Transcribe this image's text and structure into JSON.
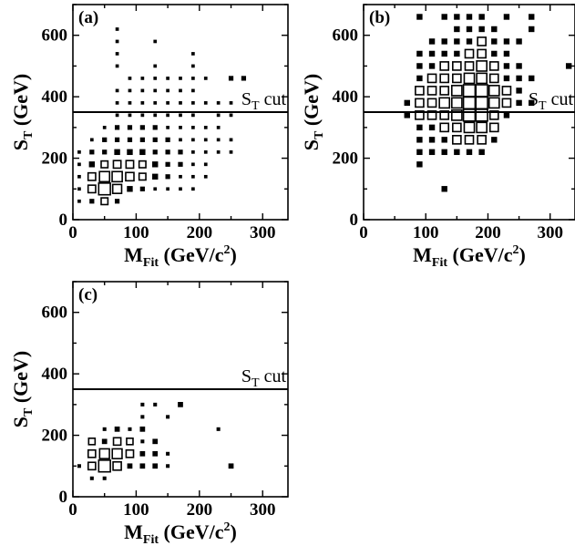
{
  "chart_data": [
    {
      "type": "box-histogram-2d",
      "panel_label": "(a)",
      "xlabel_main": "M",
      "xlabel_sub": "Fit",
      "xlabel_unit": "(GeV/c",
      "xlabel_sup": "2",
      "xlabel_close": ")",
      "ylabel_main": "S",
      "ylabel_sub": "T",
      "ylabel_unit": "(GeV)",
      "xlim": [
        0,
        340
      ],
      "ylim": [
        0,
        700
      ],
      "xticks": [
        "0",
        "100",
        "200",
        "300"
      ],
      "yticks": [
        "0",
        "200",
        "400",
        "600"
      ],
      "cut_value": 350,
      "cut_label_main": "S",
      "cut_label_sub": "T",
      "cut_label_rest": " cut",
      "bin_width": 20,
      "bin_height": 40,
      "bins": [
        [
          10,
          60,
          1
        ],
        [
          30,
          60,
          2
        ],
        [
          50,
          60,
          4
        ],
        [
          70,
          60,
          2
        ],
        [
          10,
          100,
          1
        ],
        [
          30,
          100,
          5
        ],
        [
          50,
          100,
          12
        ],
        [
          70,
          100,
          7
        ],
        [
          90,
          100,
          3
        ],
        [
          110,
          100,
          2
        ],
        [
          130,
          100,
          1
        ],
        [
          150,
          100,
          1
        ],
        [
          170,
          100,
          1
        ],
        [
          190,
          100,
          1
        ],
        [
          10,
          140,
          1
        ],
        [
          30,
          140,
          5
        ],
        [
          50,
          140,
          9
        ],
        [
          70,
          140,
          9
        ],
        [
          90,
          140,
          6
        ],
        [
          110,
          140,
          4
        ],
        [
          130,
          140,
          3
        ],
        [
          150,
          140,
          2
        ],
        [
          170,
          140,
          1
        ],
        [
          190,
          140,
          1
        ],
        [
          210,
          140,
          1
        ],
        [
          10,
          180,
          1
        ],
        [
          30,
          180,
          3
        ],
        [
          50,
          180,
          4
        ],
        [
          70,
          180,
          5
        ],
        [
          90,
          180,
          5
        ],
        [
          110,
          180,
          4
        ],
        [
          130,
          180,
          3
        ],
        [
          150,
          180,
          2
        ],
        [
          170,
          180,
          2
        ],
        [
          190,
          180,
          1
        ],
        [
          210,
          180,
          1
        ],
        [
          10,
          220,
          1
        ],
        [
          30,
          220,
          2
        ],
        [
          50,
          220,
          2
        ],
        [
          70,
          220,
          3
        ],
        [
          90,
          220,
          3
        ],
        [
          110,
          220,
          3
        ],
        [
          130,
          220,
          2
        ],
        [
          150,
          220,
          2
        ],
        [
          170,
          220,
          2
        ],
        [
          190,
          220,
          1
        ],
        [
          210,
          220,
          1
        ],
        [
          230,
          220,
          1
        ],
        [
          250,
          220,
          1
        ],
        [
          30,
          260,
          1
        ],
        [
          50,
          260,
          2
        ],
        [
          70,
          260,
          2
        ],
        [
          90,
          260,
          2
        ],
        [
          110,
          260,
          2
        ],
        [
          130,
          260,
          2
        ],
        [
          150,
          260,
          2
        ],
        [
          170,
          260,
          1
        ],
        [
          190,
          260,
          1
        ],
        [
          210,
          260,
          1
        ],
        [
          230,
          260,
          1
        ],
        [
          250,
          260,
          1
        ],
        [
          50,
          300,
          1
        ],
        [
          70,
          300,
          2
        ],
        [
          90,
          300,
          2
        ],
        [
          110,
          300,
          2
        ],
        [
          130,
          300,
          2
        ],
        [
          150,
          300,
          1
        ],
        [
          170,
          300,
          1
        ],
        [
          190,
          300,
          1
        ],
        [
          210,
          300,
          1
        ],
        [
          230,
          300,
          1
        ],
        [
          70,
          340,
          1
        ],
        [
          90,
          340,
          1
        ],
        [
          110,
          340,
          1
        ],
        [
          130,
          340,
          1
        ],
        [
          150,
          340,
          1
        ],
        [
          170,
          340,
          1
        ],
        [
          190,
          340,
          1
        ],
        [
          230,
          340,
          1
        ],
        [
          250,
          340,
          1
        ],
        [
          70,
          380,
          1
        ],
        [
          90,
          380,
          1
        ],
        [
          110,
          380,
          1
        ],
        [
          130,
          380,
          1
        ],
        [
          150,
          380,
          1
        ],
        [
          170,
          380,
          1
        ],
        [
          190,
          380,
          1
        ],
        [
          210,
          380,
          1
        ],
        [
          230,
          380,
          1
        ],
        [
          250,
          380,
          1
        ],
        [
          70,
          420,
          1
        ],
        [
          90,
          420,
          1
        ],
        [
          110,
          420,
          1
        ],
        [
          130,
          420,
          1
        ],
        [
          150,
          420,
          1
        ],
        [
          170,
          420,
          1
        ],
        [
          190,
          420,
          1
        ],
        [
          90,
          460,
          1
        ],
        [
          110,
          460,
          1
        ],
        [
          130,
          460,
          1
        ],
        [
          150,
          460,
          1
        ],
        [
          170,
          460,
          1
        ],
        [
          190,
          460,
          1
        ],
        [
          210,
          460,
          1
        ],
        [
          250,
          460,
          2
        ],
        [
          270,
          460,
          2
        ],
        [
          70,
          500,
          1
        ],
        [
          130,
          500,
          1
        ],
        [
          190,
          500,
          1
        ],
        [
          70,
          540,
          1
        ],
        [
          190,
          540,
          1
        ],
        [
          70,
          580,
          1
        ],
        [
          130,
          580,
          1
        ],
        [
          70,
          620,
          1
        ]
      ]
    },
    {
      "type": "box-histogram-2d",
      "panel_label": "(b)",
      "xlabel_main": "M",
      "xlabel_sub": "Fit",
      "xlabel_unit": "(GeV/c",
      "xlabel_sup": "2",
      "xlabel_close": ")",
      "ylabel_main": "S",
      "ylabel_sub": "T",
      "ylabel_unit": "(GeV)",
      "xlim": [
        0,
        340
      ],
      "ylim": [
        0,
        700
      ],
      "xticks": [
        "0",
        "100",
        "200",
        "300"
      ],
      "yticks": [
        "0",
        "200",
        "400",
        "600"
      ],
      "cut_value": 350,
      "cut_label_main": "S",
      "cut_label_sub": "T",
      "cut_label_rest": " cut",
      "bin_width": 20,
      "bin_height": 40,
      "bins": [
        [
          130,
          100,
          1
        ],
        [
          90,
          180,
          1
        ],
        [
          90,
          220,
          1
        ],
        [
          110,
          220,
          1
        ],
        [
          130,
          220,
          1
        ],
        [
          150,
          220,
          1
        ],
        [
          170,
          220,
          1
        ],
        [
          190,
          220,
          1
        ],
        [
          90,
          260,
          1
        ],
        [
          110,
          260,
          1
        ],
        [
          130,
          260,
          1
        ],
        [
          150,
          260,
          2
        ],
        [
          170,
          260,
          2
        ],
        [
          190,
          260,
          2
        ],
        [
          210,
          260,
          1
        ],
        [
          90,
          300,
          1
        ],
        [
          110,
          300,
          1
        ],
        [
          130,
          300,
          2
        ],
        [
          150,
          300,
          2
        ],
        [
          170,
          300,
          3
        ],
        [
          190,
          300,
          3
        ],
        [
          210,
          300,
          2
        ],
        [
          70,
          340,
          1
        ],
        [
          90,
          340,
          2
        ],
        [
          110,
          340,
          2
        ],
        [
          130,
          340,
          2
        ],
        [
          150,
          340,
          3
        ],
        [
          170,
          340,
          4
        ],
        [
          190,
          340,
          4
        ],
        [
          210,
          340,
          2
        ],
        [
          230,
          340,
          1
        ],
        [
          70,
          380,
          1
        ],
        [
          90,
          380,
          2
        ],
        [
          110,
          380,
          2
        ],
        [
          130,
          380,
          3
        ],
        [
          150,
          380,
          3
        ],
        [
          170,
          380,
          4
        ],
        [
          190,
          380,
          4
        ],
        [
          210,
          380,
          3
        ],
        [
          230,
          380,
          2
        ],
        [
          250,
          380,
          1
        ],
        [
          270,
          380,
          1
        ],
        [
          90,
          420,
          2
        ],
        [
          110,
          420,
          2
        ],
        [
          130,
          420,
          2
        ],
        [
          150,
          420,
          3
        ],
        [
          170,
          420,
          4
        ],
        [
          190,
          420,
          4
        ],
        [
          210,
          420,
          3
        ],
        [
          230,
          420,
          2
        ],
        [
          250,
          420,
          1
        ],
        [
          90,
          460,
          1
        ],
        [
          110,
          460,
          2
        ],
        [
          130,
          460,
          2
        ],
        [
          150,
          460,
          2
        ],
        [
          170,
          460,
          3
        ],
        [
          190,
          460,
          3
        ],
        [
          210,
          460,
          2
        ],
        [
          230,
          460,
          1
        ],
        [
          250,
          460,
          1
        ],
        [
          270,
          460,
          1
        ],
        [
          90,
          500,
          1
        ],
        [
          110,
          500,
          1
        ],
        [
          130,
          500,
          2
        ],
        [
          150,
          500,
          2
        ],
        [
          170,
          500,
          2
        ],
        [
          190,
          500,
          3
        ],
        [
          210,
          500,
          2
        ],
        [
          230,
          500,
          1
        ],
        [
          250,
          500,
          1
        ],
        [
          330,
          500,
          1
        ],
        [
          90,
          540,
          1
        ],
        [
          110,
          540,
          1
        ],
        [
          130,
          540,
          1
        ],
        [
          150,
          540,
          1
        ],
        [
          170,
          540,
          2
        ],
        [
          190,
          540,
          2
        ],
        [
          210,
          540,
          1
        ],
        [
          230,
          540,
          1
        ],
        [
          110,
          580,
          1
        ],
        [
          130,
          580,
          1
        ],
        [
          150,
          580,
          1
        ],
        [
          170,
          580,
          1
        ],
        [
          190,
          580,
          2
        ],
        [
          210,
          580,
          1
        ],
        [
          230,
          580,
          1
        ],
        [
          250,
          580,
          1
        ],
        [
          150,
          620,
          1
        ],
        [
          170,
          620,
          1
        ],
        [
          190,
          620,
          1
        ],
        [
          210,
          620,
          1
        ],
        [
          270,
          620,
          1
        ],
        [
          90,
          660,
          1
        ],
        [
          130,
          660,
          1
        ],
        [
          150,
          660,
          1
        ],
        [
          170,
          660,
          1
        ],
        [
          190,
          660,
          1
        ],
        [
          230,
          660,
          1
        ],
        [
          270,
          660,
          1
        ]
      ]
    },
    {
      "type": "box-histogram-2d",
      "panel_label": "(c)",
      "xlabel_main": "M",
      "xlabel_sub": "Fit",
      "xlabel_unit": "(GeV/c",
      "xlabel_sup": "2",
      "xlabel_close": ")",
      "ylabel_main": "S",
      "ylabel_sub": "T",
      "ylabel_unit": "(GeV)",
      "xlim": [
        0,
        340
      ],
      "ylim": [
        0,
        700
      ],
      "xticks": [
        "0",
        "100",
        "200",
        "300"
      ],
      "yticks": [
        "0",
        "200",
        "400",
        "600"
      ],
      "cut_value": 350,
      "cut_label_main": "S",
      "cut_label_sub": "T",
      "cut_label_rest": " cut",
      "bin_width": 20,
      "bin_height": 40,
      "bins": [
        [
          30,
          60,
          1
        ],
        [
          50,
          60,
          1
        ],
        [
          10,
          100,
          1
        ],
        [
          30,
          100,
          4
        ],
        [
          50,
          100,
          10
        ],
        [
          70,
          100,
          5
        ],
        [
          90,
          100,
          2
        ],
        [
          110,
          100,
          2
        ],
        [
          130,
          100,
          2
        ],
        [
          150,
          100,
          1
        ],
        [
          250,
          100,
          2
        ],
        [
          30,
          140,
          4
        ],
        [
          50,
          140,
          7
        ],
        [
          70,
          140,
          7
        ],
        [
          90,
          140,
          4
        ],
        [
          110,
          140,
          2
        ],
        [
          130,
          140,
          2
        ],
        [
          150,
          140,
          1
        ],
        [
          30,
          180,
          3
        ],
        [
          50,
          180,
          2
        ],
        [
          70,
          180,
          4
        ],
        [
          90,
          180,
          3
        ],
        [
          110,
          180,
          1
        ],
        [
          130,
          180,
          2
        ],
        [
          50,
          220,
          1
        ],
        [
          70,
          220,
          2
        ],
        [
          90,
          220,
          1
        ],
        [
          110,
          220,
          2
        ],
        [
          230,
          220,
          1
        ],
        [
          110,
          260,
          1
        ],
        [
          150,
          260,
          1
        ],
        [
          110,
          300,
          1
        ],
        [
          130,
          300,
          1
        ],
        [
          170,
          300,
          2
        ]
      ]
    }
  ]
}
